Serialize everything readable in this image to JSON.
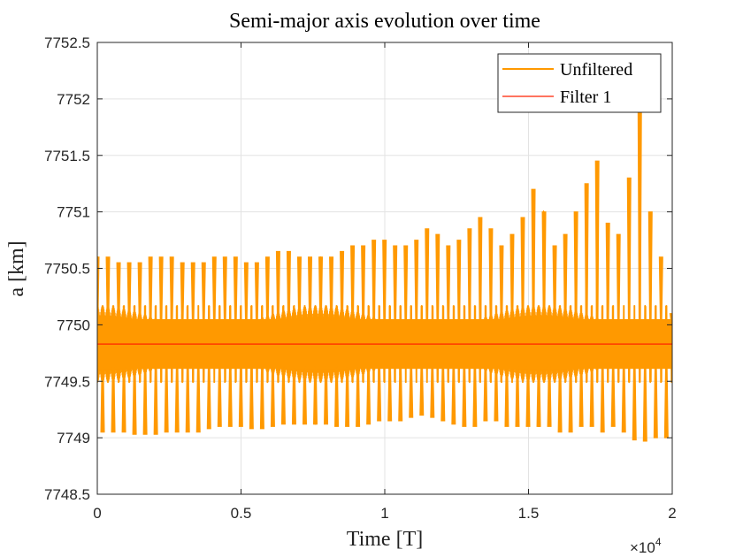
{
  "chart_data": {
    "type": "line",
    "title": "Semi-major axis evolution over time",
    "xlabel": "Time [T]",
    "ylabel": "a [km]",
    "x_exponent_label": "×10",
    "x_exponent_power": "4",
    "xlim": [
      0,
      20000
    ],
    "ylim": [
      7748.5,
      7752.5
    ],
    "x_ticks": [
      0,
      5000,
      10000,
      15000,
      20000
    ],
    "x_tick_labels": [
      "0",
      "0.5",
      "1",
      "1.5",
      "2"
    ],
    "y_ticks": [
      7748.5,
      7749,
      7749.5,
      7750,
      7750.5,
      7751,
      7751.5,
      7752,
      7752.5
    ],
    "y_tick_labels": [
      "7748.5",
      "7749",
      "7749.5",
      "7750",
      "7750.5",
      "7751",
      "7751.5",
      "7752",
      "7752.5"
    ],
    "grid": true,
    "legend_position": "top-right",
    "series": [
      {
        "name": "Unfiltered",
        "color": "#ff9900",
        "style": "dense oscillation",
        "mean": 7749.83,
        "peaks": [
          {
            "x": 0,
            "y": 7750.6
          },
          {
            "x": 370,
            "y": 7750.6
          },
          {
            "x": 740,
            "y": 7750.55
          },
          {
            "x": 1110,
            "y": 7750.55
          },
          {
            "x": 1480,
            "y": 7750.55
          },
          {
            "x": 1850,
            "y": 7750.6
          },
          {
            "x": 2220,
            "y": 7750.6
          },
          {
            "x": 2590,
            "y": 7750.6
          },
          {
            "x": 2960,
            "y": 7750.55
          },
          {
            "x": 3330,
            "y": 7750.55
          },
          {
            "x": 3700,
            "y": 7750.55
          },
          {
            "x": 4070,
            "y": 7750.6
          },
          {
            "x": 4440,
            "y": 7750.6
          },
          {
            "x": 4810,
            "y": 7750.6
          },
          {
            "x": 5180,
            "y": 7750.55
          },
          {
            "x": 5550,
            "y": 7750.55
          },
          {
            "x": 5920,
            "y": 7750.6
          },
          {
            "x": 6290,
            "y": 7750.65
          },
          {
            "x": 6660,
            "y": 7750.65
          },
          {
            "x": 7030,
            "y": 7750.6
          },
          {
            "x": 7400,
            "y": 7750.6
          },
          {
            "x": 7770,
            "y": 7750.6
          },
          {
            "x": 8140,
            "y": 7750.6
          },
          {
            "x": 8510,
            "y": 7750.65
          },
          {
            "x": 8880,
            "y": 7750.7
          },
          {
            "x": 9250,
            "y": 7750.7
          },
          {
            "x": 9620,
            "y": 7750.75
          },
          {
            "x": 9990,
            "y": 7750.75
          },
          {
            "x": 10360,
            "y": 7750.7
          },
          {
            "x": 10730,
            "y": 7750.7
          },
          {
            "x": 11100,
            "y": 7750.75
          },
          {
            "x": 11470,
            "y": 7750.85
          },
          {
            "x": 11840,
            "y": 7750.8
          },
          {
            "x": 12210,
            "y": 7750.7
          },
          {
            "x": 12580,
            "y": 7750.75
          },
          {
            "x": 12950,
            "y": 7750.85
          },
          {
            "x": 13320,
            "y": 7750.95
          },
          {
            "x": 13690,
            "y": 7750.85
          },
          {
            "x": 14060,
            "y": 7750.7
          },
          {
            "x": 14430,
            "y": 7750.8
          },
          {
            "x": 14800,
            "y": 7750.95
          },
          {
            "x": 15170,
            "y": 7751.2
          },
          {
            "x": 15540,
            "y": 7751.0
          },
          {
            "x": 15910,
            "y": 7750.7
          },
          {
            "x": 16280,
            "y": 7750.8
          },
          {
            "x": 16650,
            "y": 7751.0
          },
          {
            "x": 17020,
            "y": 7751.25
          },
          {
            "x": 17390,
            "y": 7751.45
          },
          {
            "x": 17760,
            "y": 7750.9
          },
          {
            "x": 18130,
            "y": 7750.8
          },
          {
            "x": 18500,
            "y": 7751.3
          },
          {
            "x": 18870,
            "y": 7751.95
          },
          {
            "x": 19240,
            "y": 7751.0
          },
          {
            "x": 19610,
            "y": 7750.6
          },
          {
            "x": 19980,
            "y": 7750.1
          }
        ],
        "troughs": [
          {
            "x": 185,
            "y": 7749.05
          },
          {
            "x": 555,
            "y": 7749.05
          },
          {
            "x": 925,
            "y": 7749.05
          },
          {
            "x": 1295,
            "y": 7749.03
          },
          {
            "x": 1665,
            "y": 7749.03
          },
          {
            "x": 2035,
            "y": 7749.03
          },
          {
            "x": 2405,
            "y": 7749.05
          },
          {
            "x": 2775,
            "y": 7749.05
          },
          {
            "x": 3145,
            "y": 7749.05
          },
          {
            "x": 3515,
            "y": 7749.05
          },
          {
            "x": 3885,
            "y": 7749.08
          },
          {
            "x": 4255,
            "y": 7749.1
          },
          {
            "x": 4625,
            "y": 7749.1
          },
          {
            "x": 4995,
            "y": 7749.1
          },
          {
            "x": 5365,
            "y": 7749.08
          },
          {
            "x": 5735,
            "y": 7749.08
          },
          {
            "x": 6105,
            "y": 7749.1
          },
          {
            "x": 6475,
            "y": 7749.12
          },
          {
            "x": 6845,
            "y": 7749.12
          },
          {
            "x": 7215,
            "y": 7749.12
          },
          {
            "x": 7585,
            "y": 7749.12
          },
          {
            "x": 7955,
            "y": 7749.12
          },
          {
            "x": 8325,
            "y": 7749.1
          },
          {
            "x": 8695,
            "y": 7749.1
          },
          {
            "x": 9065,
            "y": 7749.1
          },
          {
            "x": 9435,
            "y": 7749.12
          },
          {
            "x": 9805,
            "y": 7749.15
          },
          {
            "x": 10175,
            "y": 7749.15
          },
          {
            "x": 10545,
            "y": 7749.15
          },
          {
            "x": 10915,
            "y": 7749.18
          },
          {
            "x": 11285,
            "y": 7749.2
          },
          {
            "x": 11655,
            "y": 7749.18
          },
          {
            "x": 12025,
            "y": 7749.15
          },
          {
            "x": 12395,
            "y": 7749.12
          },
          {
            "x": 12765,
            "y": 7749.1
          },
          {
            "x": 13135,
            "y": 7749.1
          },
          {
            "x": 13505,
            "y": 7749.15
          },
          {
            "x": 13875,
            "y": 7749.15
          },
          {
            "x": 14245,
            "y": 7749.1
          },
          {
            "x": 14615,
            "y": 7749.1
          },
          {
            "x": 14985,
            "y": 7749.1
          },
          {
            "x": 15355,
            "y": 7749.1
          },
          {
            "x": 15725,
            "y": 7749.1
          },
          {
            "x": 16095,
            "y": 7749.05
          },
          {
            "x": 16465,
            "y": 7749.05
          },
          {
            "x": 16835,
            "y": 7749.1
          },
          {
            "x": 17205,
            "y": 7749.1
          },
          {
            "x": 17575,
            "y": 7749.05
          },
          {
            "x": 17945,
            "y": 7749.1
          },
          {
            "x": 18315,
            "y": 7749.05
          },
          {
            "x": 18685,
            "y": 7748.98
          },
          {
            "x": 19055,
            "y": 7748.97
          },
          {
            "x": 19425,
            "y": 7749.0
          },
          {
            "x": 19795,
            "y": 7749.0
          }
        ]
      },
      {
        "name": "Filter 1",
        "color": "#ff2200",
        "x": [
          0,
          20000
        ],
        "y": [
          7749.83,
          7749.83
        ]
      }
    ]
  }
}
